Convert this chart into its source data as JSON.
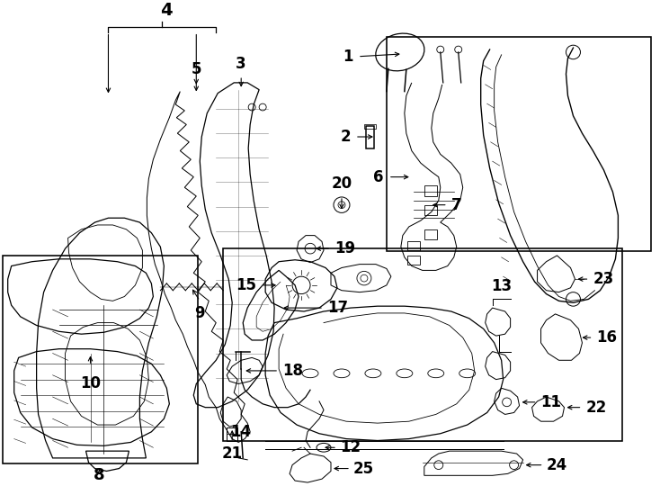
{
  "bg_color": "#ffffff",
  "line_color": "#000000",
  "figsize": [
    7.34,
    5.4
  ],
  "dpi": 100,
  "lw": 0.9
}
